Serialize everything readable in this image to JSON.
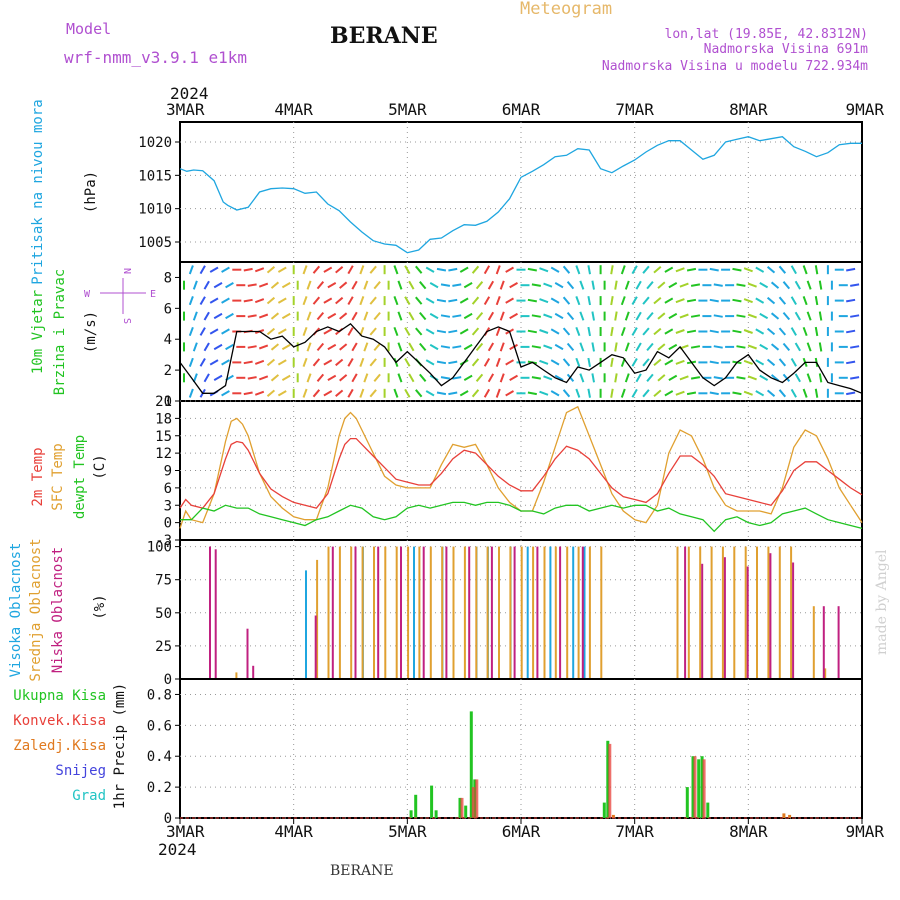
{
  "header": {
    "model_label": "Model",
    "model_name": "wrf-nmm_v3.9.1 e1km",
    "station": "BERANE",
    "meteogram": "Meteogram",
    "lonlat": "lon,lat (19.85E, 42.8312N)",
    "elevation": "Nadmorska Visina 691m",
    "elevation_model": "Nadmorska Visina u modelu 722.934m",
    "year_top": "2024",
    "year_bottom": "2024",
    "footer_station": "BERANE",
    "made_by": "made by Angel",
    "date_labels": [
      "3MAR",
      "4MAR",
      "5MAR",
      "6MAR",
      "7MAR",
      "8MAR",
      "9MAR"
    ]
  },
  "colors": {
    "pressure": "#1fa6e0",
    "temp2m": "#e8403a",
    "sfc": "#e0a030",
    "dewpt": "#22c422",
    "cloud_high": "#1fa6e0",
    "cloud_mid": "#e0a030",
    "cloud_low": "#c02080",
    "precip_total": "#22c422",
    "precip_conv": "#e8403a",
    "precip_frozen": "#e07a20",
    "snow": "#4444dd",
    "hail": "#22c4c4",
    "model": "#b050d0"
  },
  "chart_data": [
    {
      "type": "line",
      "panel": "pressure",
      "ylabel_lines": [
        "Pritisak na nivou mora",
        "(hPa)"
      ],
      "y_ticks": [
        "1005",
        "1010",
        "1015",
        "1020"
      ],
      "ylim": [
        1002,
        1023
      ],
      "x_days": [
        0,
        6
      ],
      "grid": true,
      "series": [
        {
          "x": [
            0,
            0.06,
            0.12,
            0.2,
            0.3,
            0.38,
            0.42,
            0.5,
            0.6,
            0.7,
            0.8,
            0.9,
            1,
            1.1,
            1.2,
            1.3,
            1.4,
            1.5,
            1.6,
            1.7,
            1.8,
            1.9,
            2,
            2.1,
            2.2,
            2.3,
            2.4,
            2.5,
            2.6,
            2.7,
            2.8,
            2.9,
            3,
            3.1,
            3.2,
            3.3,
            3.4,
            3.5,
            3.6,
            3.7,
            3.8,
            3.9,
            4,
            4.1,
            4.2,
            4.3,
            4.4,
            4.5,
            4.6,
            4.7,
            4.8,
            4.9,
            5,
            5.1,
            5.2,
            5.3,
            5.4,
            5.5,
            5.6,
            5.7,
            5.8,
            5.9,
            6
          ],
          "values": [
            1016,
            1015.6,
            1015.8,
            1015.7,
            1014.2,
            1011,
            1010.5,
            1009.8,
            1010.2,
            1012.5,
            1013,
            1013.1,
            1013,
            1012.3,
            1012.5,
            1010.7,
            1009.7,
            1008,
            1006.5,
            1005.2,
            1004.7,
            1004.5,
            1003.4,
            1003.8,
            1005.4,
            1005.6,
            1006.7,
            1007.6,
            1007.5,
            1008.1,
            1009.5,
            1011.5,
            1014.7,
            1015.6,
            1016.6,
            1017.8,
            1018,
            1019,
            1018.8,
            1016,
            1015.4,
            1016.4,
            1017.3,
            1018.5,
            1019.5,
            1020.2,
            1020.2,
            1018.8,
            1017.4,
            1018,
            1020,
            1020.4,
            1020.8,
            1020.2,
            1020.5,
            1020.8,
            1019.3,
            1018.6,
            1017.8,
            1018.4,
            1019.6,
            1019.8,
            1019.8
          ]
        }
      ]
    },
    {
      "type": "scatter",
      "panel": "wind",
      "ylabel_lines": [
        "10m Vjetar",
        "Brzina i Pravac",
        "(m/s)"
      ],
      "y_ticks": [
        "0",
        "2",
        "4",
        "6",
        "8"
      ],
      "ylim": [
        0,
        9
      ],
      "compass": [
        "N",
        "S",
        "W",
        "E"
      ],
      "speed": {
        "x": [
          0,
          0.1,
          0.2,
          0.3,
          0.4,
          0.5,
          0.6,
          0.7,
          0.8,
          0.9,
          1,
          1.1,
          1.2,
          1.3,
          1.4,
          1.5,
          1.6,
          1.7,
          1.8,
          1.9,
          2,
          2.1,
          2.2,
          2.3,
          2.4,
          2.5,
          2.6,
          2.7,
          2.8,
          2.9,
          3,
          3.1,
          3.2,
          3.3,
          3.4,
          3.5,
          3.6,
          3.7,
          3.8,
          3.9,
          4,
          4.1,
          4.2,
          4.3,
          4.4,
          4.5,
          4.6,
          4.7,
          4.8,
          4.9,
          5,
          5.1,
          5.2,
          5.3,
          5.4,
          5.5,
          5.6,
          5.7,
          5.8,
          5.9,
          6
        ],
        "values": [
          2.5,
          1.5,
          0.5,
          0.5,
          1,
          4.5,
          4.5,
          4.5,
          4,
          4.2,
          3.5,
          3.8,
          4.5,
          4.8,
          4.5,
          5,
          4.2,
          4,
          3.5,
          2.5,
          3.2,
          2.5,
          1.8,
          1,
          1.5,
          2.5,
          3.5,
          4.5,
          4.8,
          4.5,
          2.2,
          2.5,
          2,
          1.5,
          1.2,
          2.2,
          2,
          2.5,
          3,
          2.8,
          1.8,
          2,
          3.2,
          2.8,
          3.5,
          2.5,
          1.5,
          1,
          1.5,
          2.5,
          3,
          2,
          1.5,
          1.2,
          1.8,
          2.5,
          2.5,
          1.2,
          1,
          0.8,
          0.5
        ]
      },
      "arrow_directions_deg": [
        180,
        200,
        30,
        60,
        240,
        270,
        260,
        250,
        230,
        240,
        180,
        200,
        220,
        240,
        230,
        210,
        200,
        220,
        180,
        160,
        150,
        140,
        120,
        100,
        80,
        60,
        40,
        30,
        20,
        60,
        90,
        100,
        110,
        120,
        140,
        160,
        170,
        180,
        190,
        200,
        210,
        220,
        230,
        240,
        250,
        260,
        270,
        280,
        90,
        100,
        110,
        120,
        130,
        140,
        150,
        160,
        170,
        180,
        90,
        80,
        90
      ]
    },
    {
      "type": "line",
      "panel": "temperature",
      "ylabel_lines": [
        "2m Temp",
        "SFC Temp",
        "dewpt Temp",
        "(C)"
      ],
      "y_ticks": [
        "-3",
        "0",
        "3",
        "6",
        "9",
        "12",
        "15",
        "18",
        "21"
      ],
      "ylim": [
        -3,
        21
      ],
      "series": [
        {
          "name": "2m Temp",
          "x": [
            0,
            0.05,
            0.1,
            0.2,
            0.3,
            0.4,
            0.45,
            0.5,
            0.55,
            0.6,
            0.7,
            0.8,
            0.9,
            1,
            1.1,
            1.2,
            1.3,
            1.4,
            1.45,
            1.5,
            1.55,
            1.6,
            1.7,
            1.8,
            1.9,
            2,
            2.1,
            2.2,
            2.3,
            2.4,
            2.5,
            2.6,
            2.7,
            2.8,
            2.9,
            3,
            3.1,
            3.2,
            3.3,
            3.4,
            3.5,
            3.6,
            3.7,
            3.8,
            3.9,
            4,
            4.1,
            4.2,
            4.3,
            4.4,
            4.5,
            4.6,
            4.7,
            4.8,
            4.9,
            5,
            5.1,
            5.2,
            5.3,
            5.4,
            5.5,
            5.6,
            5.7,
            5.8,
            5.9,
            6
          ],
          "values": [
            2.5,
            4,
            3,
            2.5,
            5,
            11,
            13.5,
            14,
            13.8,
            12.5,
            8.5,
            5.8,
            4.5,
            3.5,
            3,
            2.5,
            5,
            11,
            13.5,
            14.5,
            14.5,
            13.5,
            11.5,
            9.5,
            7.5,
            7,
            6.5,
            6.5,
            8.5,
            11,
            12.5,
            12,
            10,
            8,
            6.5,
            5.5,
            5.5,
            8,
            11,
            13.2,
            12.5,
            11,
            8.5,
            6,
            4.5,
            4,
            3.5,
            5,
            8.5,
            11.5,
            11.5,
            10,
            8,
            5,
            4.5,
            4,
            3.5,
            3,
            5.5,
            9,
            10.5,
            10.5,
            9,
            7.5,
            6,
            4.8
          ]
        },
        {
          "name": "SFC Temp",
          "x": [
            0,
            0.05,
            0.1,
            0.2,
            0.3,
            0.4,
            0.45,
            0.5,
            0.55,
            0.6,
            0.7,
            0.8,
            0.9,
            1,
            1.1,
            1.2,
            1.3,
            1.4,
            1.45,
            1.5,
            1.55,
            1.6,
            1.7,
            1.8,
            1.9,
            2,
            2.1,
            2.2,
            2.3,
            2.4,
            2.5,
            2.6,
            2.7,
            2.8,
            2.9,
            3,
            3.1,
            3.2,
            3.3,
            3.4,
            3.5,
            3.6,
            3.7,
            3.8,
            3.9,
            4,
            4.1,
            4.2,
            4.3,
            4.4,
            4.5,
            4.6,
            4.7,
            4.8,
            4.9,
            5,
            5.1,
            5.2,
            5.3,
            5.4,
            5.5,
            5.6,
            5.7,
            5.8,
            5.9,
            6
          ],
          "values": [
            -1,
            2,
            0.5,
            0,
            5,
            14,
            17.5,
            18,
            17,
            15,
            8.5,
            4.5,
            2.5,
            1,
            0.5,
            0.5,
            6,
            15,
            18,
            19,
            18,
            16,
            12,
            8,
            6.5,
            6,
            6,
            6,
            10,
            13.5,
            13,
            13.5,
            10,
            6,
            3.5,
            2,
            2,
            7,
            13,
            19,
            20,
            15,
            10,
            5,
            2,
            0.5,
            0,
            3,
            12,
            16,
            15,
            11,
            6,
            3,
            2,
            2,
            2,
            1.5,
            6,
            13,
            16,
            15,
            11,
            6,
            3,
            0
          ]
        },
        {
          "name": "dewpt Temp",
          "x": [
            0,
            0.1,
            0.2,
            0.3,
            0.4,
            0.5,
            0.6,
            0.7,
            0.8,
            0.9,
            1,
            1.1,
            1.2,
            1.3,
            1.4,
            1.5,
            1.6,
            1.7,
            1.8,
            1.9,
            2,
            2.1,
            2.2,
            2.3,
            2.4,
            2.5,
            2.6,
            2.7,
            2.8,
            2.9,
            3,
            3.1,
            3.2,
            3.3,
            3.4,
            3.5,
            3.6,
            3.7,
            3.8,
            3.9,
            4,
            4.1,
            4.2,
            4.3,
            4.4,
            4.5,
            4.6,
            4.7,
            4.8,
            4.9,
            5,
            5.1,
            5.2,
            5.3,
            5.4,
            5.5,
            5.6,
            5.7,
            5.8,
            5.9,
            6
          ],
          "values": [
            0.5,
            0.5,
            2.5,
            2,
            3,
            2.5,
            2.5,
            1.5,
            1,
            0.5,
            0,
            -0.5,
            0.5,
            1,
            2,
            3,
            2.5,
            1,
            0.5,
            1,
            2.5,
            3,
            2.5,
            3,
            3.5,
            3.5,
            3,
            3.5,
            3.5,
            3,
            2,
            2,
            1.5,
            2.5,
            3,
            3,
            2,
            2.5,
            3,
            2.5,
            3,
            3,
            2,
            2.5,
            1.5,
            1,
            0.5,
            -1.5,
            0.5,
            1,
            0,
            -0.5,
            0,
            1.5,
            2,
            2.5,
            1.5,
            0.5,
            0,
            -0.5,
            -1
          ]
        }
      ]
    },
    {
      "type": "bar",
      "panel": "clouds",
      "ylabel_lines": [
        "Visoka Oblacnost",
        "Srednja Oblacnost",
        "Niska Oblacnost",
        "(%)"
      ],
      "y_ticks": [
        "0",
        "25",
        "50",
        "75",
        "100"
      ],
      "ylim": [
        0,
        105
      ],
      "series": [
        {
          "name": "Visoka Oblacnost",
          "x": [
            1.1,
            1.6,
            2.05,
            2.3,
            2.6,
            2.7,
            2.9,
            3.05,
            3.25,
            3.45,
            3.55
          ],
          "values": [
            82,
            100,
            100,
            100,
            100,
            100,
            100,
            100,
            100,
            100,
            100
          ]
        },
        {
          "name": "Srednja Oblacnost",
          "x": [
            0.47,
            1.18,
            1.28,
            1.38,
            1.48,
            1.58,
            1.68,
            1.78,
            1.88,
            1.98,
            2.08,
            2.18,
            2.28,
            2.38,
            2.48,
            2.58,
            2.68,
            2.78,
            2.88,
            2.98,
            3.08,
            3.18,
            3.28,
            3.38,
            3.48,
            3.58,
            3.68,
            4.35,
            4.45,
            4.55,
            4.65,
            4.75,
            4.85,
            4.95,
            5.05,
            5.15,
            5.25,
            5.35,
            5.55,
            5.65
          ],
          "values": [
            5,
            90,
            100,
            100,
            100,
            100,
            100,
            100,
            100,
            100,
            100,
            100,
            100,
            100,
            100,
            100,
            100,
            100,
            100,
            100,
            100,
            100,
            100,
            100,
            100,
            100,
            100,
            100,
            100,
            100,
            100,
            100,
            100,
            100,
            100,
            100,
            100,
            100,
            55,
            8
          ]
        },
        {
          "name": "Niska Oblacnost",
          "x": [
            0.22,
            0.27,
            0.55,
            0.6,
            1.15,
            1.3,
            1.5,
            1.7,
            1.9,
            2.1,
            2.3,
            2.5,
            2.7,
            2.9,
            3.1,
            3.3,
            3.5,
            4.4,
            4.55,
            4.75,
            4.95,
            5.15,
            5.35,
            5.62,
            5.75
          ],
          "values": [
            100,
            98,
            38,
            10,
            48,
            100,
            100,
            100,
            100,
            100,
            100,
            100,
            100,
            100,
            100,
            100,
            100,
            100,
            87,
            92,
            85,
            95,
            88,
            55,
            55
          ]
        }
      ]
    },
    {
      "type": "bar",
      "panel": "precip",
      "ylabel_lines": [
        "1hr Precip (mm)"
      ],
      "y_ticks": [
        "0",
        "0.2",
        "0.4",
        "0.6",
        "0.8"
      ],
      "ylim": [
        0,
        0.9
      ],
      "legend": [
        "Ukupna Kisa",
        "Konvek.Kisa",
        "Zaledj.Kisa",
        "Snijeg",
        "Grad"
      ],
      "series": [
        {
          "name": "Ukupna Kisa",
          "x": [
            2.02,
            2.06,
            2.2,
            2.24,
            2.45,
            2.5,
            2.55,
            2.58,
            3.72,
            3.75,
            4.45,
            4.5,
            4.55,
            4.58,
            4.63
          ],
          "values": [
            0.05,
            0.15,
            0.21,
            0.05,
            0.13,
            0.08,
            0.69,
            0.25,
            0.1,
            0.5,
            0.2,
            0.4,
            0.38,
            0.4,
            0.1
          ]
        },
        {
          "name": "Konvek.Kisa",
          "x": [
            2.45,
            2.55,
            2.58,
            3.75,
            4.5,
            4.58
          ],
          "values": [
            0.13,
            0.2,
            0.25,
            0.48,
            0.4,
            0.38
          ]
        },
        {
          "name": "Zaledj.Kisa",
          "x": [
            3.8,
            5.3,
            5.35
          ],
          "values": [
            0.02,
            0.03,
            0.02
          ]
        }
      ]
    }
  ]
}
